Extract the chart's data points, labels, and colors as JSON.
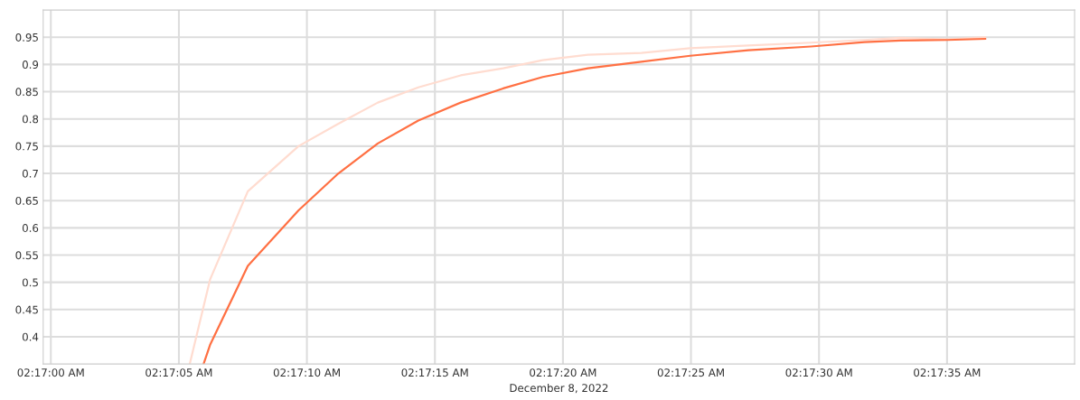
{
  "chart_data": {
    "type": "line",
    "xlabel": "December 8, 2022",
    "series": [
      {
        "color": "#ffdcd0",
        "x": [
          2.28484,
          2.28506,
          2.28547,
          2.28602,
          2.28644,
          2.28688,
          2.28732,
          2.28778,
          2.28824,
          2.28867,
          2.28916,
          2.28974,
          2.29027,
          2.2909,
          2.29158,
          2.29216,
          2.29255,
          2.29306,
          2.29347
        ],
        "values": [
          0.35,
          0.505,
          0.667,
          0.75,
          0.79,
          0.83,
          0.858,
          0.88,
          0.893,
          0.908,
          0.918,
          0.921,
          0.93,
          0.935,
          0.94,
          0.945,
          0.949,
          0.946,
          0.95
        ]
      },
      {
        "color": "#ff7043",
        "x": [
          2.28499,
          2.28506,
          2.28547,
          2.28602,
          2.28644,
          2.28688,
          2.28732,
          2.28778,
          2.28824,
          2.28867,
          2.28916,
          2.28974,
          2.29027,
          2.2909,
          2.29158,
          2.29216,
          2.29255,
          2.29306,
          2.29347
        ],
        "values": [
          0.35,
          0.385,
          0.53,
          0.632,
          0.698,
          0.755,
          0.797,
          0.83,
          0.856,
          0.877,
          0.893,
          0.905,
          0.916,
          0.926,
          0.933,
          0.941,
          0.944,
          0.945,
          0.947
        ]
      }
    ],
    "xlim": [
      2.28325,
      2.29444
    ],
    "ylim": [
      0.35,
      1.0
    ],
    "xticks": [
      {
        "value": 2.283333,
        "label": "02:17:00 AM"
      },
      {
        "value": 2.284722,
        "label": "02:17:05 AM"
      },
      {
        "value": 2.286111,
        "label": "02:17:10 AM"
      },
      {
        "value": 2.2875,
        "label": "02:17:15 AM"
      },
      {
        "value": 2.288889,
        "label": "02:17:20 AM"
      },
      {
        "value": 2.290278,
        "label": "02:17:25 AM"
      },
      {
        "value": 2.291667,
        "label": "02:17:30 AM"
      },
      {
        "value": 2.293056,
        "label": "02:17:35 AM"
      }
    ],
    "yticks": [
      0.4,
      0.45,
      0.5,
      0.55,
      0.6,
      0.65,
      0.7,
      0.75,
      0.8,
      0.85,
      0.9,
      0.95
    ],
    "grid": true,
    "marker": "none",
    "line_style": "solid"
  }
}
